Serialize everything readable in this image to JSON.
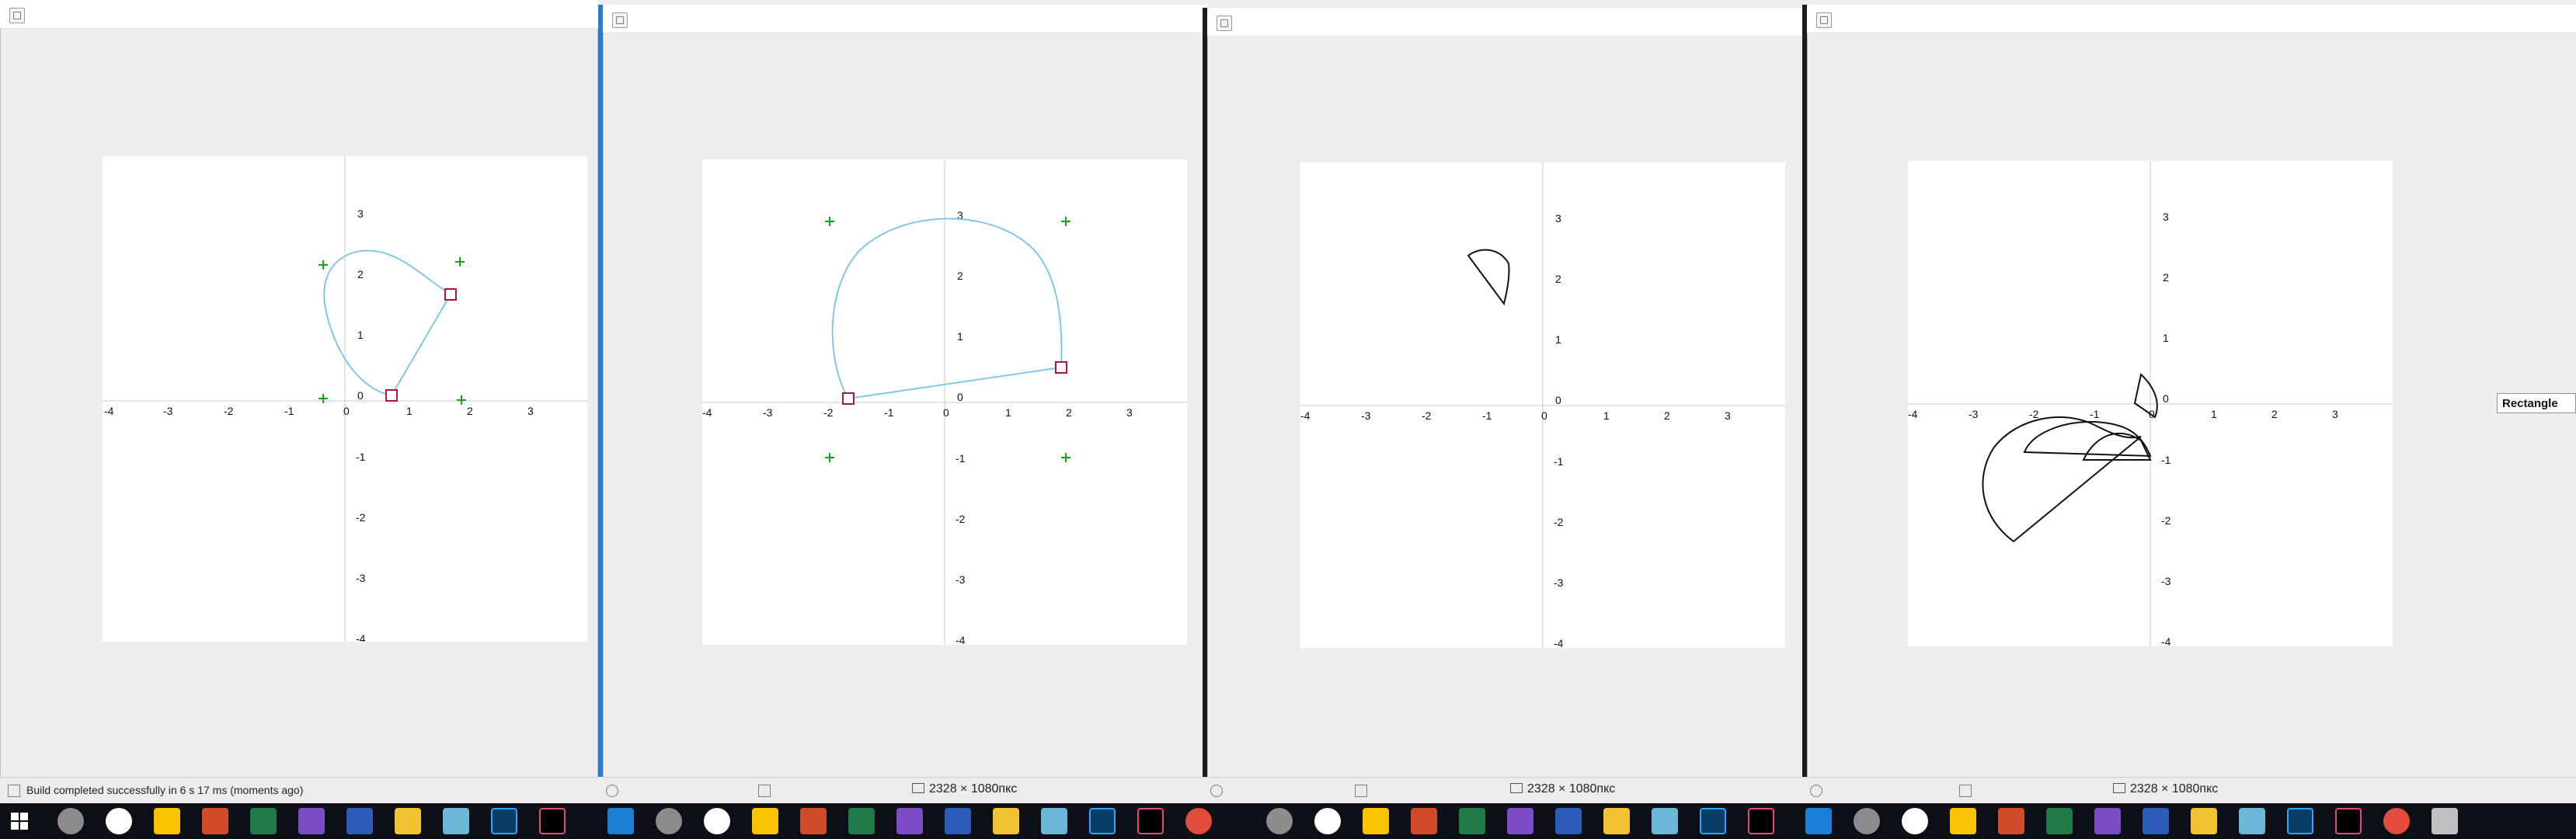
{
  "windows": [
    {
      "id": "w1"
    },
    {
      "id": "w2"
    },
    {
      "id": "w3"
    },
    {
      "id": "w4"
    }
  ],
  "axis_labels": {
    "x": [
      "-4",
      "-3",
      "-2",
      "-1",
      "0",
      "1",
      "2",
      "3"
    ],
    "y": [
      "3",
      "2",
      "1",
      "0",
      "-1",
      "-2",
      "-3",
      "-4"
    ]
  },
  "status": {
    "build_message": "Build completed successfully in 6 s 17 ms (moments ago)",
    "dimensions": "2328 × 1080пкс"
  },
  "side_panel": {
    "shape_label": "Rectangle"
  },
  "colors": {
    "curve": "#76c3ea",
    "handle": "#b0143a",
    "cross": "#19a319",
    "shape": "#111111"
  },
  "taskbar": {
    "icons": [
      "windows-start-icon",
      "settings-icon",
      "browser-w-icon",
      "sticky-notes-icon",
      "powerpoint-icon",
      "excel-icon",
      "visual-studio-icon",
      "word-icon",
      "file-explorer-icon",
      "notepad-icon",
      "photoshop-icon",
      "intellij-icon",
      "chrome-icon",
      "java-icon"
    ]
  }
}
